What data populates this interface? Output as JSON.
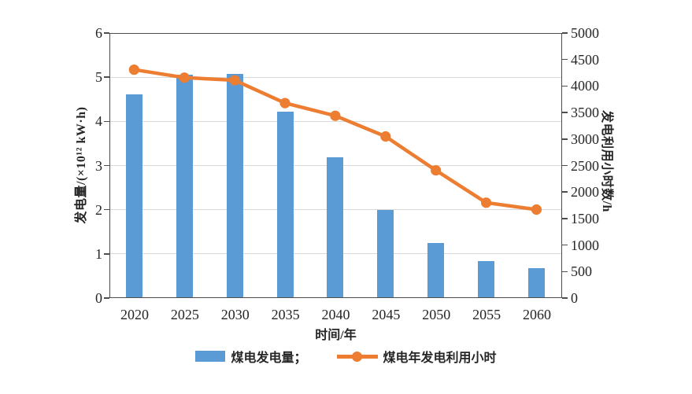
{
  "chart_data": {
    "type": "bar+line",
    "categories": [
      "2020",
      "2025",
      "2030",
      "2035",
      "2040",
      "2045",
      "2050",
      "2055",
      "2060"
    ],
    "series": [
      {
        "name": "煤电发电量",
        "type": "bar",
        "axis": "left",
        "color": "#5B9BD5",
        "values": [
          4.63,
          5.06,
          5.08,
          4.23,
          3.2,
          2.0,
          1.26,
          0.84,
          0.68
        ]
      },
      {
        "name": "煤电年发电利用小时",
        "type": "line",
        "axis": "right",
        "color": "#ED7D31",
        "values": [
          4300,
          4150,
          4100,
          3670,
          3430,
          3040,
          2400,
          1790,
          1660
        ]
      }
    ],
    "title": "",
    "xlabel": "时间/年",
    "ylabel_left": "发电量/(×10¹² kW·h)",
    "ylabel_right": "发电利用小时数/h",
    "ylim_left": [
      0,
      6
    ],
    "ylim_right": [
      0,
      5000
    ],
    "left_ticks": [
      0,
      1,
      2,
      3,
      4,
      5,
      6
    ],
    "right_ticks": [
      0,
      500,
      1000,
      1500,
      2000,
      2500,
      3000,
      3500,
      4000,
      4500,
      5000
    ],
    "grid": true,
    "legend_position": "bottom"
  },
  "legend": {
    "bar_label": "煤电发电量；",
    "line_label": "煤电年发电利用小时"
  },
  "colors": {
    "bar": "#5B9BD5",
    "line": "#ED7D31",
    "grid": "#D9D9D9",
    "axis": "#4D4D4D"
  }
}
